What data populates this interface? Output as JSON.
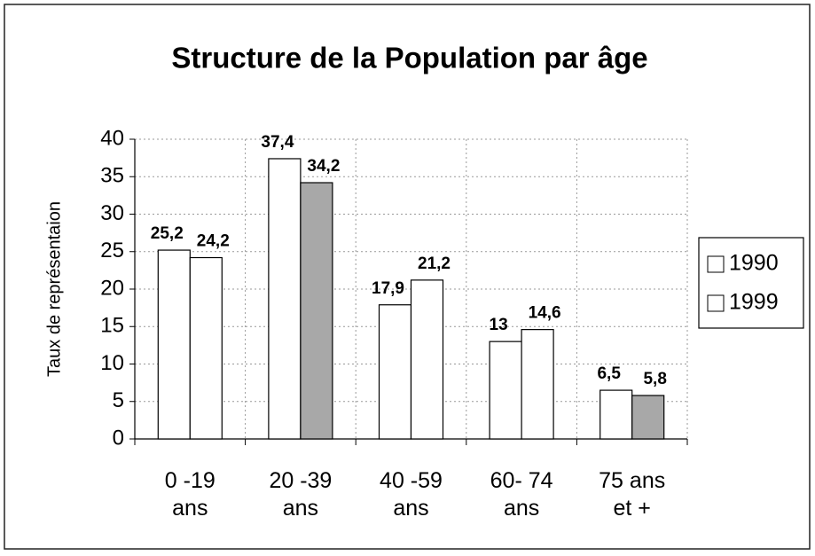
{
  "chart_data": {
    "type": "bar",
    "title": "Structure de la Population par âge",
    "y_label": "Taux de représentaion",
    "categories": [
      [
        "0 -19",
        "ans"
      ],
      [
        "20 -39",
        "ans"
      ],
      [
        "40 -59",
        "ans"
      ],
      [
        "60- 74",
        "ans"
      ],
      [
        "75 ans",
        "et +"
      ]
    ],
    "series": [
      {
        "name": "1990",
        "color": "#ffffff",
        "values": [
          25.2,
          37.4,
          17.9,
          13,
          6.5
        ],
        "value_labels": [
          "25,2",
          "37,4",
          "17,9",
          "13",
          "6,5"
        ]
      },
      {
        "name": "1999",
        "color": "#ffffff",
        "bar_colors": [
          "#ffffff",
          "#a8a8a8",
          "#ffffff",
          "#ffffff",
          "#a8a8a8"
        ],
        "values": [
          24.2,
          34.2,
          21.2,
          14.6,
          5.8
        ],
        "value_labels": [
          "24,2",
          "34,2",
          "21,2",
          "14,6",
          "5,8"
        ]
      }
    ],
    "ylim": [
      0,
      40
    ],
    "yticks": [
      0,
      5,
      10,
      15,
      20,
      25,
      30,
      35,
      40
    ],
    "grid": true,
    "legend": "right"
  }
}
